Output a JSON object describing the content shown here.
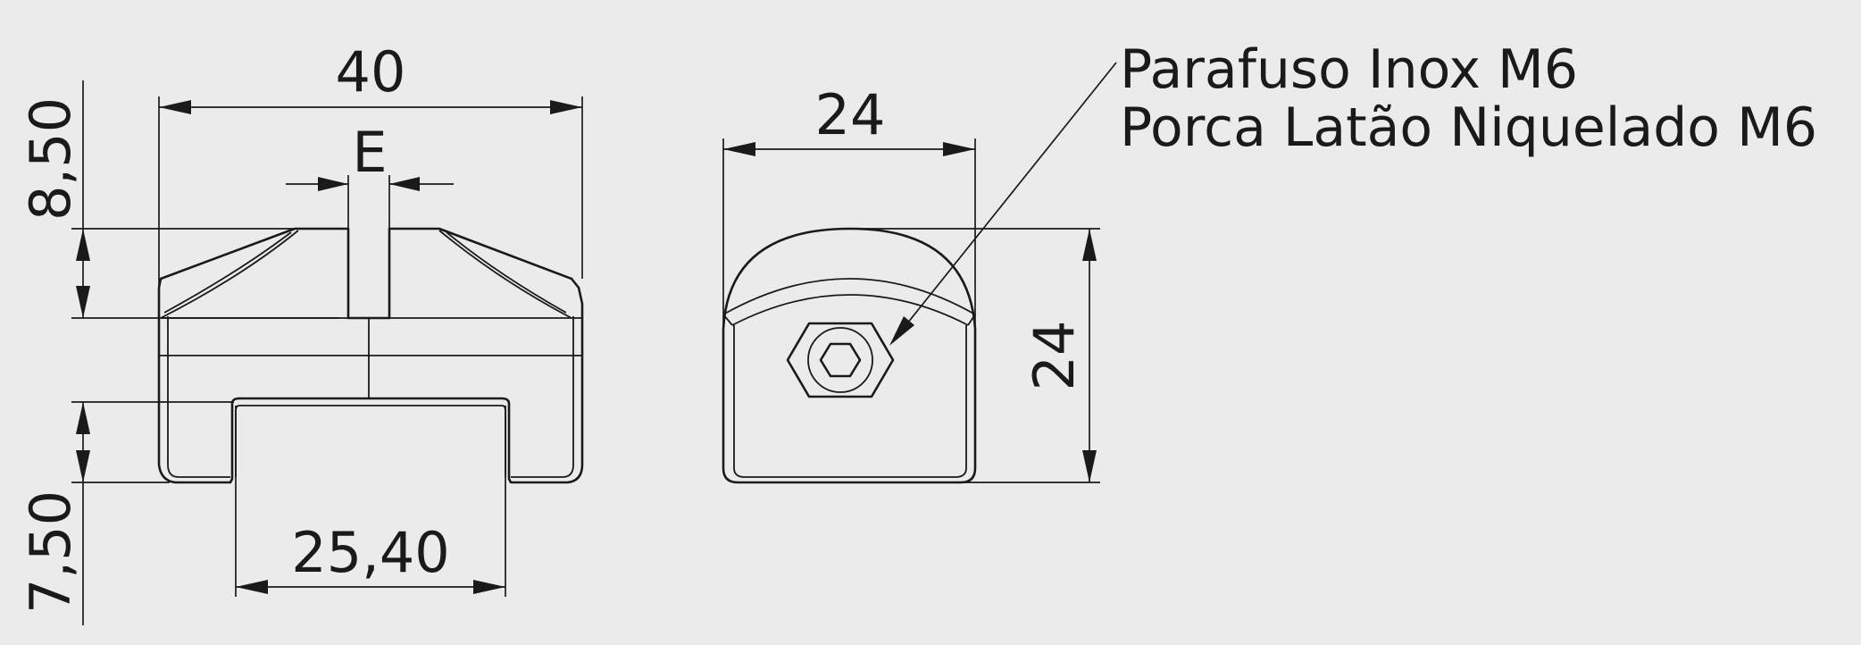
{
  "dimensions": {
    "width_total": "40",
    "slot_width": "E",
    "top_height": "8,50",
    "bottom_height": "7,50",
    "channel_width": "25,40",
    "side_width": "24",
    "side_height": "24"
  },
  "callout": {
    "line1": "Parafuso Inox M6",
    "line2": "Porca Latão Niquelado M6"
  },
  "colors": {
    "background": "#ebebeb",
    "lines": "#1a1a1a"
  }
}
